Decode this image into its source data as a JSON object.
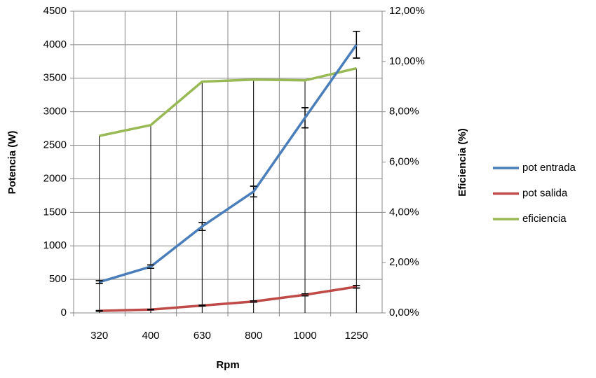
{
  "chart_data": {
    "type": "line",
    "x_label": "Rpm",
    "y_label": "Potencia (W)",
    "y2_label": "Eficiencia (%)",
    "categories": [
      "320",
      "400",
      "630",
      "800",
      "1000",
      "1250"
    ],
    "series": [
      {
        "name": "pot entrada",
        "color": "#4a7ebb",
        "values": [
          460,
          690,
          1290,
          1810,
          2910,
          4000
        ],
        "errors": [
          20,
          25,
          60,
          80,
          150,
          200
        ]
      },
      {
        "name": "pot salida",
        "color": "#be4b48",
        "values": [
          30,
          50,
          110,
          170,
          270,
          390
        ],
        "errors": [
          5,
          5,
          8,
          10,
          15,
          20
        ]
      },
      {
        "name": "eficiencia",
        "color": "#98b954",
        "axis": "y2",
        "values": [
          7.04,
          7.47,
          9.2,
          9.28,
          9.25,
          9.73
        ],
        "drop_lines": true
      }
    ],
    "ylim": [
      0,
      4500
    ],
    "yticks": [
      0,
      500,
      1000,
      1500,
      2000,
      2500,
      3000,
      3500,
      4000,
      4500
    ],
    "y2lim": [
      0,
      12
    ],
    "y2ticks": [
      {
        "value": 0,
        "label": "0,00%"
      },
      {
        "value": 2,
        "label": "2,00%"
      },
      {
        "value": 4,
        "label": "4,00%"
      },
      {
        "value": 6,
        "label": "6,00%"
      },
      {
        "value": 8,
        "label": "8,00%"
      },
      {
        "value": 10,
        "label": "10,00%"
      },
      {
        "value": 12,
        "label": "12,00%"
      }
    ],
    "grid": true,
    "legend": "right"
  }
}
